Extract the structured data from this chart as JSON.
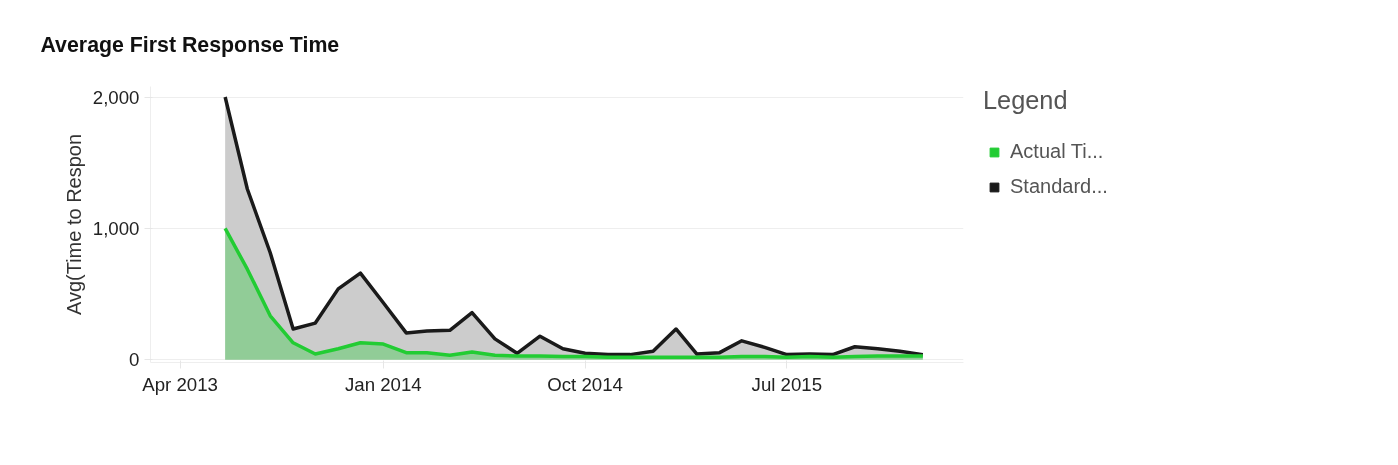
{
  "chart_data": {
    "type": "area",
    "title": "Average First Response Time",
    "ylabel": "Avg(Time to Respon",
    "legend_title": "Legend",
    "x": [
      "2013-06",
      "2013-07",
      "2013-08",
      "2013-09",
      "2013-10",
      "2013-11",
      "2013-12",
      "2014-01",
      "2014-02",
      "2014-03",
      "2014-04",
      "2014-05",
      "2014-06",
      "2014-07",
      "2014-08",
      "2014-09",
      "2014-10",
      "2014-11",
      "2014-12",
      "2015-01",
      "2015-02",
      "2015-03",
      "2015-04",
      "2015-05",
      "2015-06",
      "2015-07",
      "2015-08",
      "2015-09",
      "2015-10",
      "2015-11",
      "2015-12",
      "2016-01"
    ],
    "series": [
      {
        "name": "Standard...",
        "color": "#1a1a1a",
        "values": [
          2000,
          1300,
          815,
          235,
          280,
          540,
          660,
          435,
          205,
          220,
          225,
          360,
          160,
          50,
          180,
          85,
          50,
          40,
          40,
          65,
          235,
          45,
          55,
          145,
          95,
          40,
          45,
          40,
          100,
          85,
          65,
          40
        ]
      },
      {
        "name": "Actual Ti...",
        "color": "#22cc33",
        "values": [
          1000,
          690,
          335,
          130,
          45,
          85,
          130,
          120,
          55,
          55,
          35,
          60,
          35,
          30,
          30,
          25,
          25,
          20,
          20,
          20,
          20,
          20,
          20,
          25,
          25,
          20,
          25,
          20,
          25,
          30,
          30,
          30
        ]
      }
    ],
    "xlim": [
      "2013-02-20",
      "2016-02-25"
    ],
    "xticks": [
      {
        "value": "2013-04",
        "label": "Apr 2013"
      },
      {
        "value": "2014-01",
        "label": "Jan 2014"
      },
      {
        "value": "2014-10",
        "label": "Oct 2014"
      },
      {
        "value": "2015-07",
        "label": "Jul 2015"
      }
    ],
    "ylim": [
      -20,
      2080
    ],
    "yticks": [
      {
        "value": 0,
        "label": "0"
      },
      {
        "value": 1000,
        "label": "1,000"
      },
      {
        "value": 2000,
        "label": "2,000"
      }
    ],
    "grid": "y",
    "legend": "right"
  }
}
